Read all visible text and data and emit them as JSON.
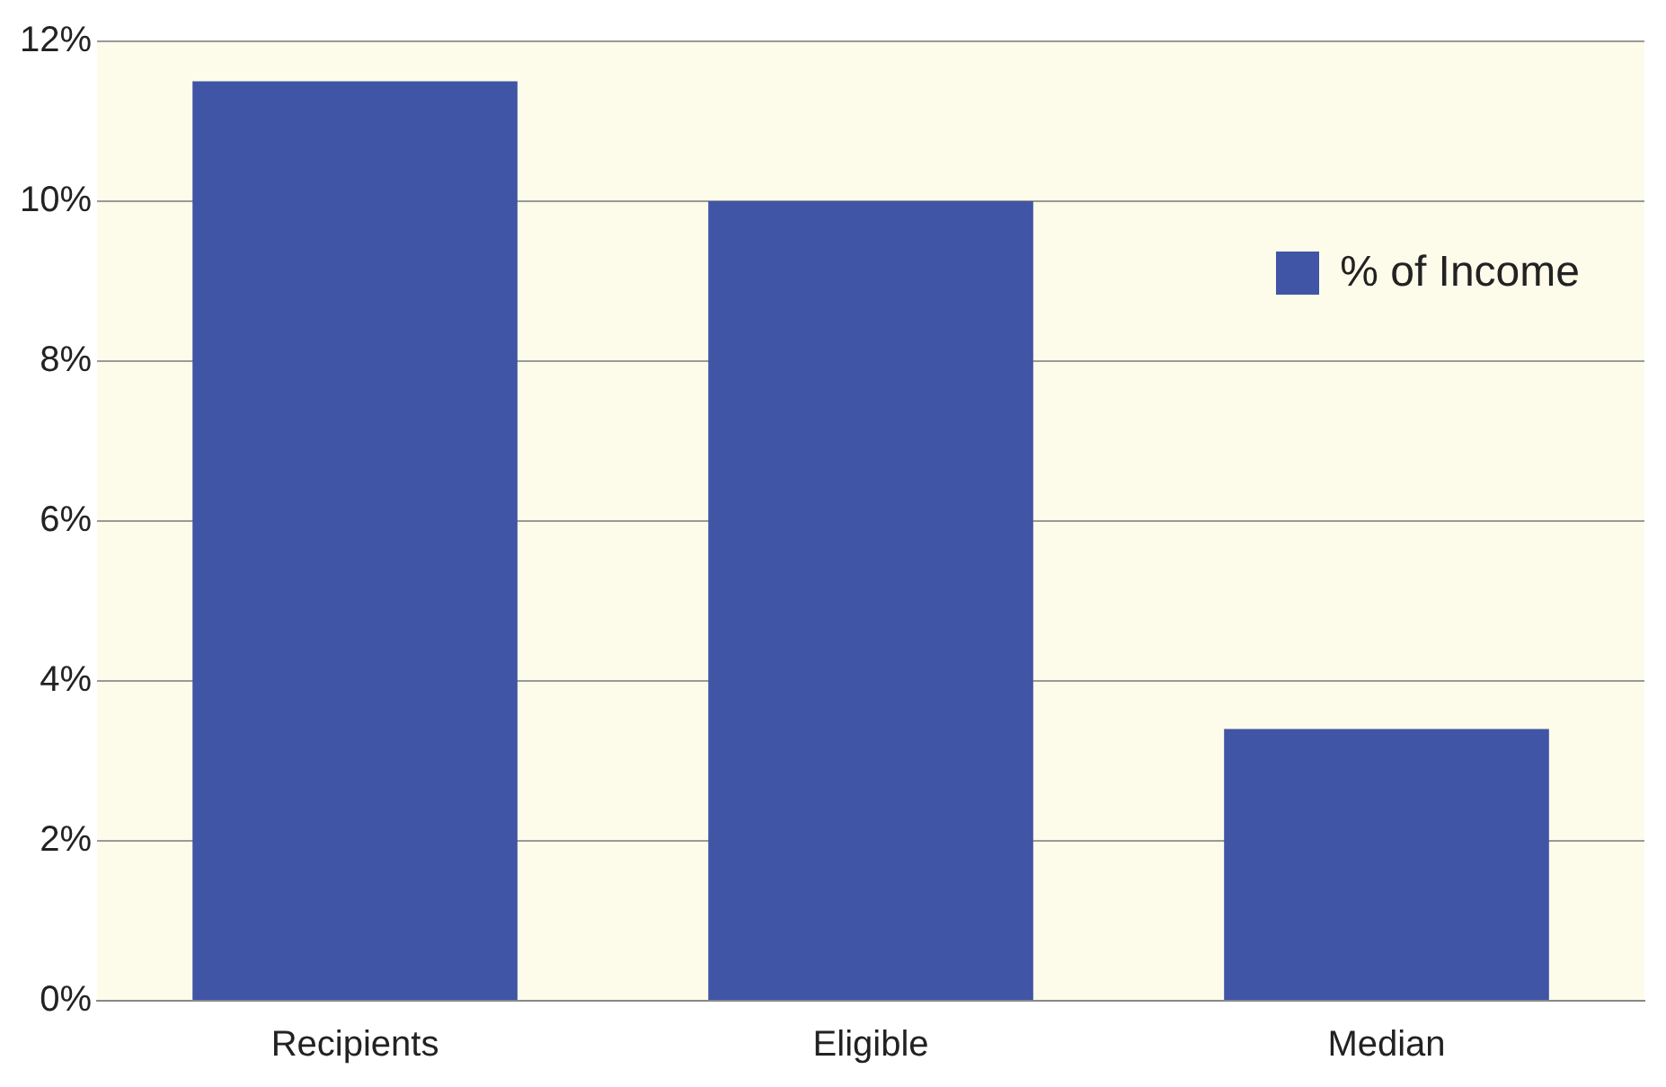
{
  "chart_data": {
    "type": "bar",
    "categories": [
      "Recipients",
      "Eligible",
      "Median"
    ],
    "series": [
      {
        "name": "% of Income",
        "color": "#4055a5",
        "values": [
          11.5,
          10.0,
          3.4
        ]
      }
    ],
    "ylim": [
      0,
      12
    ],
    "yticks": [
      {
        "value": 0,
        "label": "0%"
      },
      {
        "value": 2,
        "label": "2%"
      },
      {
        "value": 4,
        "label": "4%"
      },
      {
        "value": 6,
        "label": "6%"
      },
      {
        "value": 8,
        "label": "8%"
      },
      {
        "value": 10,
        "label": "10%"
      },
      {
        "value": 12,
        "label": "12%"
      }
    ],
    "grid": "y",
    "legend": "top right"
  }
}
